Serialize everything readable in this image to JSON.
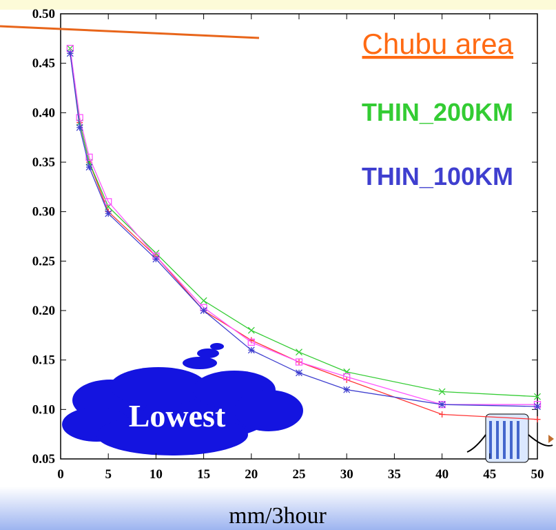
{
  "chart_data": {
    "type": "line",
    "title": "Chubu area",
    "xlabel": "mm/3hour",
    "annotation": "Lowest",
    "x": [
      1,
      2,
      3,
      5,
      10,
      15,
      20,
      25,
      30,
      40,
      50
    ],
    "series": [
      {
        "color": "#ff3333",
        "marker": "plus",
        "values": [
          0.46,
          0.39,
          0.35,
          0.3,
          0.255,
          0.2,
          0.17,
          0.148,
          0.13,
          0.095,
          0.09
        ]
      },
      {
        "name": "THIN_200KM",
        "color": "#33cc33",
        "marker": "cross",
        "values": [
          0.465,
          0.39,
          0.35,
          0.305,
          0.258,
          0.21,
          0.18,
          0.158,
          0.138,
          0.118,
          0.113
        ]
      },
      {
        "color": "#ff55ff",
        "marker": "square",
        "values": [
          0.465,
          0.395,
          0.355,
          0.31,
          0.255,
          0.203,
          0.168,
          0.148,
          0.133,
          0.105,
          0.105
        ]
      },
      {
        "name": "THIN_100KM",
        "color": "#3f3fcf",
        "marker": "star",
        "values": [
          0.46,
          0.385,
          0.345,
          0.298,
          0.252,
          0.2,
          0.16,
          0.137,
          0.12,
          0.105,
          0.103
        ]
      }
    ],
    "xlim": [
      0,
      50
    ],
    "xticks": [
      0,
      5,
      10,
      15,
      20,
      25,
      30,
      35,
      40,
      45,
      50
    ],
    "ylim": [
      0.05,
      0.5
    ],
    "yticks": [
      0.05,
      {
        "value": 0.1,
        "label": "0.10"
      },
      0.15,
      {
        "value": 0.2,
        "label": "0.20"
      },
      0.25,
      {
        "value": 0.3,
        "label": "0.30"
      },
      0.35,
      {
        "value": 0.4,
        "label": "0.40"
      },
      0.45,
      {
        "value": 0.5,
        "label": "0.50"
      }
    ]
  }
}
